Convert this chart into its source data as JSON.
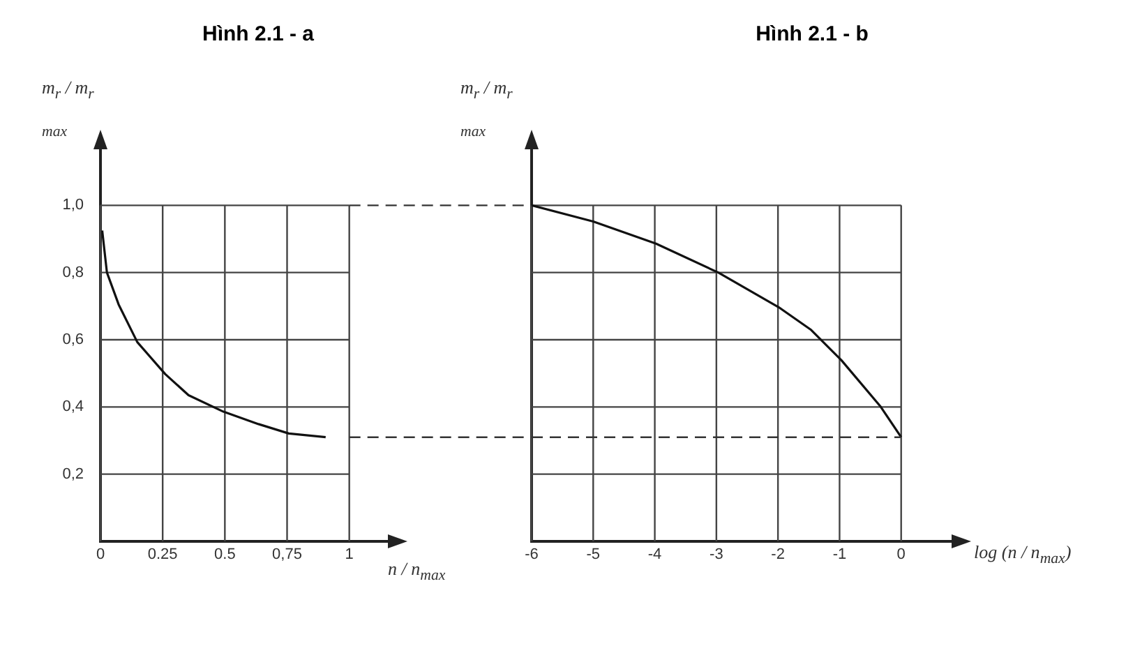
{
  "chart_data": [
    {
      "type": "line",
      "title": "Hình 2.1 - a",
      "ylabel": "m$_{r}$ / m$_{r max}$",
      "xlabel": "n / n$_{max}$",
      "x": [
        0.007,
        0.026,
        0.073,
        0.148,
        0.26,
        0.354,
        0.494,
        0.635,
        0.757,
        0.905
      ],
      "series": [
        {
          "color": "#111111",
          "values": [
            0.925,
            0.8,
            0.705,
            0.593,
            0.498,
            0.435,
            0.386,
            0.349,
            0.321,
            0.31
          ]
        }
      ],
      "xlim": [
        0,
        1.2
      ],
      "xticks": [
        0,
        0.25,
        0.5,
        {
          "value": 0.75,
          "label": "0,75"
        },
        1
      ],
      "ylim": [
        0,
        1.2
      ],
      "yticks": [
        {
          "value": 0.2,
          "label": "0,2"
        },
        {
          "value": 0.4,
          "label": "0,4"
        },
        {
          "value": 0.6,
          "label": "0,6"
        },
        {
          "value": 0.8,
          "label": "0,8"
        },
        {
          "value": 1,
          "label": "1,0"
        }
      ],
      "ref_lines": [
        {
          "axis": "y",
          "value": 1,
          "line_style": "dashed",
          "color": "#333333"
        },
        {
          "axis": "y",
          "value": 0.31,
          "line_style": "dashed",
          "color": "#333333"
        }
      ],
      "grid": true,
      "marker": "none",
      "line_style": "solid"
    },
    {
      "type": "line",
      "title": "Hình 2.1 - b",
      "ylabel": "m$_{r}$ / m$_{r max}$",
      "xlabel": "log (n / n$_{max}$)",
      "x": [
        -6,
        -5,
        -3.98,
        -2.97,
        -1.99,
        -1.46,
        -0.97,
        -0.33,
        0
      ],
      "series": [
        {
          "color": "#111111",
          "values": [
            1,
            0.952,
            0.886,
            0.8,
            0.697,
            0.629,
            0.539,
            0.4,
            0.31
          ]
        }
      ],
      "xlim": [
        -6,
        1
      ],
      "xticks": [
        -6,
        -5,
        -4,
        -3,
        -2,
        -1,
        0
      ],
      "ylim": [
        0,
        1.2
      ],
      "yticks": [
        0.2,
        0.4,
        0.6,
        0.8,
        1
      ],
      "tick_labels": "x",
      "ref_lines": [
        {
          "axis": "y",
          "value": 0.31,
          "line_style": "dashed",
          "color": "#333333"
        }
      ],
      "grid": true,
      "marker": "none",
      "line_style": "solid"
    }
  ]
}
